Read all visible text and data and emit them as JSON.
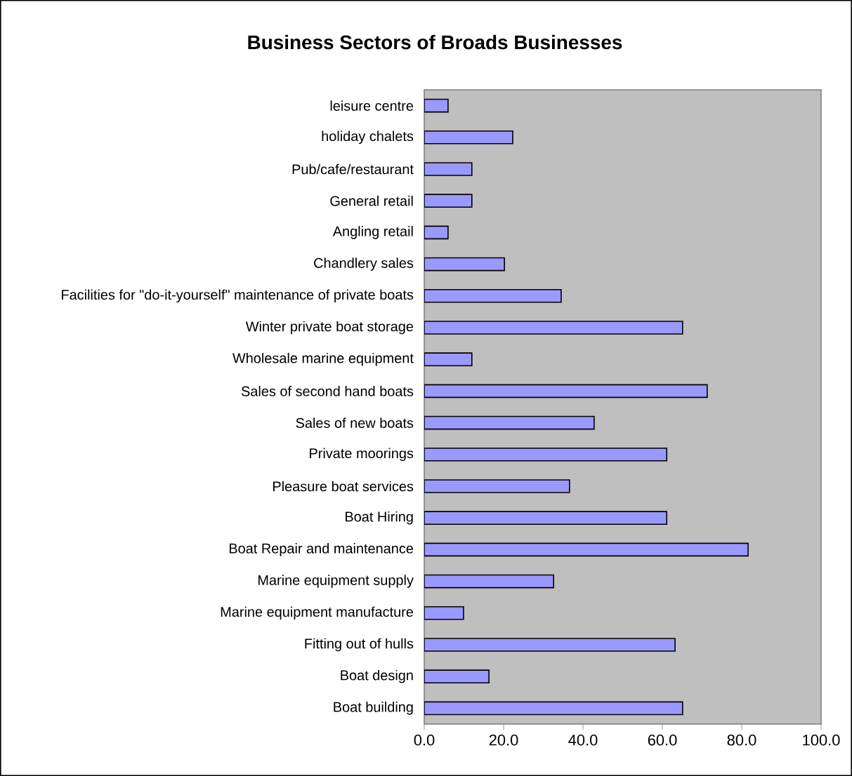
{
  "chart_data": {
    "type": "bar",
    "orientation": "horizontal",
    "title": "Business Sectors of Broads Businesses",
    "categories": [
      "leisure centre",
      "holiday chalets",
      "Pub/cafe/restaurant",
      "General retail",
      "Angling retail",
      "Chandlery sales",
      "Facilities for \"do-it-yourself\" maintenance of private boats",
      "Winter private boat storage",
      "Wholesale marine equipment",
      "Sales of second hand boats",
      "Sales of new boats",
      "Private moorings",
      "Pleasure boat services",
      "Boat Hiring",
      "Boat Repair and maintenance",
      "Marine equipment supply",
      "Marine equipment manufacture",
      "Fitting out of hulls",
      "Boat design",
      "Boat building"
    ],
    "values": [
      6,
      22.3,
      12,
      12,
      6,
      20.2,
      34.5,
      65.1,
      12,
      71.3,
      42.8,
      61.1,
      36.6,
      61.1,
      81.6,
      32.6,
      9.9,
      63.2,
      16.3,
      65.1
    ],
    "color": "#9999ff",
    "xlim": [
      0,
      100
    ],
    "xticks": [
      {
        "value": 0,
        "label": "0.0"
      },
      {
        "value": 20,
        "label": "20.0"
      },
      {
        "value": 40,
        "label": "40.0"
      },
      {
        "value": 60,
        "label": "60.0"
      },
      {
        "value": 80,
        "label": "80.0"
      },
      {
        "value": 100,
        "label": "100.0"
      }
    ]
  }
}
